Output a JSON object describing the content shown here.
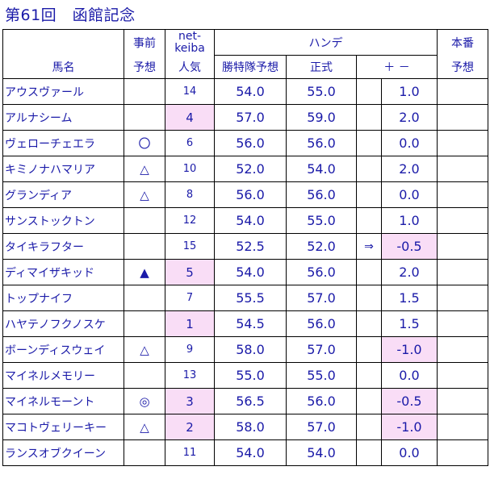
{
  "title": "第61回　函館記念",
  "header": {
    "horse": "馬名",
    "pre_top": "事前",
    "pre_bottom": "予想",
    "net_top": "net-",
    "net_mid": "keiba",
    "net_bottom": "人気",
    "handicap": "ハンデ",
    "hcap_pred": "勝特隊予想",
    "official": "正式",
    "plusminus": "＋ －",
    "final_top": "本番",
    "final_bottom": "予想"
  },
  "rows": [
    {
      "name": "アウスヴァール",
      "mark": "",
      "popularity": "14",
      "pred": "54.0",
      "official": "55.0",
      "arrow": "",
      "diff": "1.0"
    },
    {
      "name": "アルナシーム",
      "mark": "",
      "popularity": "4",
      "pred": "57.0",
      "official": "59.0",
      "arrow": "",
      "diff": "2.0"
    },
    {
      "name": "ヴェローチェエラ",
      "mark": "〇",
      "popularity": "6",
      "pred": "56.0",
      "official": "56.0",
      "arrow": "",
      "diff": "0.0"
    },
    {
      "name": "キミノナハマリア",
      "mark": "△",
      "popularity": "10",
      "pred": "52.0",
      "official": "54.0",
      "arrow": "",
      "diff": "2.0"
    },
    {
      "name": "グランディア",
      "mark": "△",
      "popularity": "8",
      "pred": "56.0",
      "official": "56.0",
      "arrow": "",
      "diff": "0.0"
    },
    {
      "name": "サンストックトン",
      "mark": "",
      "popularity": "12",
      "pred": "54.0",
      "official": "55.0",
      "arrow": "",
      "diff": "1.0"
    },
    {
      "name": "タイキラフター",
      "mark": "",
      "popularity": "15",
      "pred": "52.5",
      "official": "52.0",
      "arrow": "⇒",
      "diff": "-0.5"
    },
    {
      "name": "ディマイザキッド",
      "mark": "▲",
      "popularity": "5",
      "pred": "54.0",
      "official": "56.0",
      "arrow": "",
      "diff": "2.0"
    },
    {
      "name": "トップナイフ",
      "mark": "",
      "popularity": "7",
      "pred": "55.5",
      "official": "57.0",
      "arrow": "",
      "diff": "1.5"
    },
    {
      "name": "ハヤテノフクノスケ",
      "mark": "",
      "popularity": "1",
      "pred": "54.5",
      "official": "56.0",
      "arrow": "",
      "diff": "1.5"
    },
    {
      "name": "ボーンディスウェイ",
      "mark": "△",
      "popularity": "9",
      "pred": "58.0",
      "official": "57.0",
      "arrow": "",
      "diff": "-1.0"
    },
    {
      "name": "マイネルメモリー",
      "mark": "",
      "popularity": "13",
      "pred": "55.0",
      "official": "55.0",
      "arrow": "",
      "diff": "0.0"
    },
    {
      "name": "マイネルモーント",
      "mark": "◎",
      "popularity": "3",
      "pred": "56.5",
      "official": "56.0",
      "arrow": "",
      "diff": "-0.5"
    },
    {
      "name": "マコトヴェリーキー",
      "mark": "△",
      "popularity": "2",
      "pred": "58.0",
      "official": "57.0",
      "arrow": "",
      "diff": "-1.0"
    },
    {
      "name": "ランスオブクイーン",
      "mark": "",
      "popularity": "11",
      "pred": "54.0",
      "official": "54.0",
      "arrow": "",
      "diff": "0.0"
    }
  ]
}
